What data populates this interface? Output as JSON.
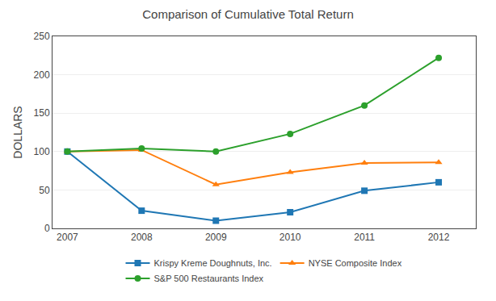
{
  "chart_data": {
    "type": "line",
    "title": "Comparison of Cumulative Total Return",
    "y_label": "DOLLARS",
    "x": [
      2007,
      2008,
      2009,
      2010,
      2011,
      2012
    ],
    "series": [
      {
        "name": "Krispy Kreme Doughnuts, Inc.",
        "values": [
          100,
          23,
          10,
          21,
          49,
          60
        ],
        "marker": "square"
      },
      {
        "name": "NYSE Composite Index",
        "values": [
          100,
          102,
          57,
          73,
          85,
          86
        ],
        "marker": "triangle-up"
      },
      {
        "name": "S&P 500 Restaurants Index",
        "values": [
          100,
          104,
          100,
          123,
          160,
          222
        ],
        "marker": "circle"
      }
    ],
    "xlim": [
      2006.8,
      2012.5
    ],
    "xticks": [
      2007,
      2008,
      2009,
      2010,
      2011,
      2012
    ],
    "ylim": [
      0,
      250
    ],
    "yticks": [
      0,
      50,
      100,
      150,
      200,
      250
    ],
    "grid": true,
    "legend": "bottom"
  }
}
